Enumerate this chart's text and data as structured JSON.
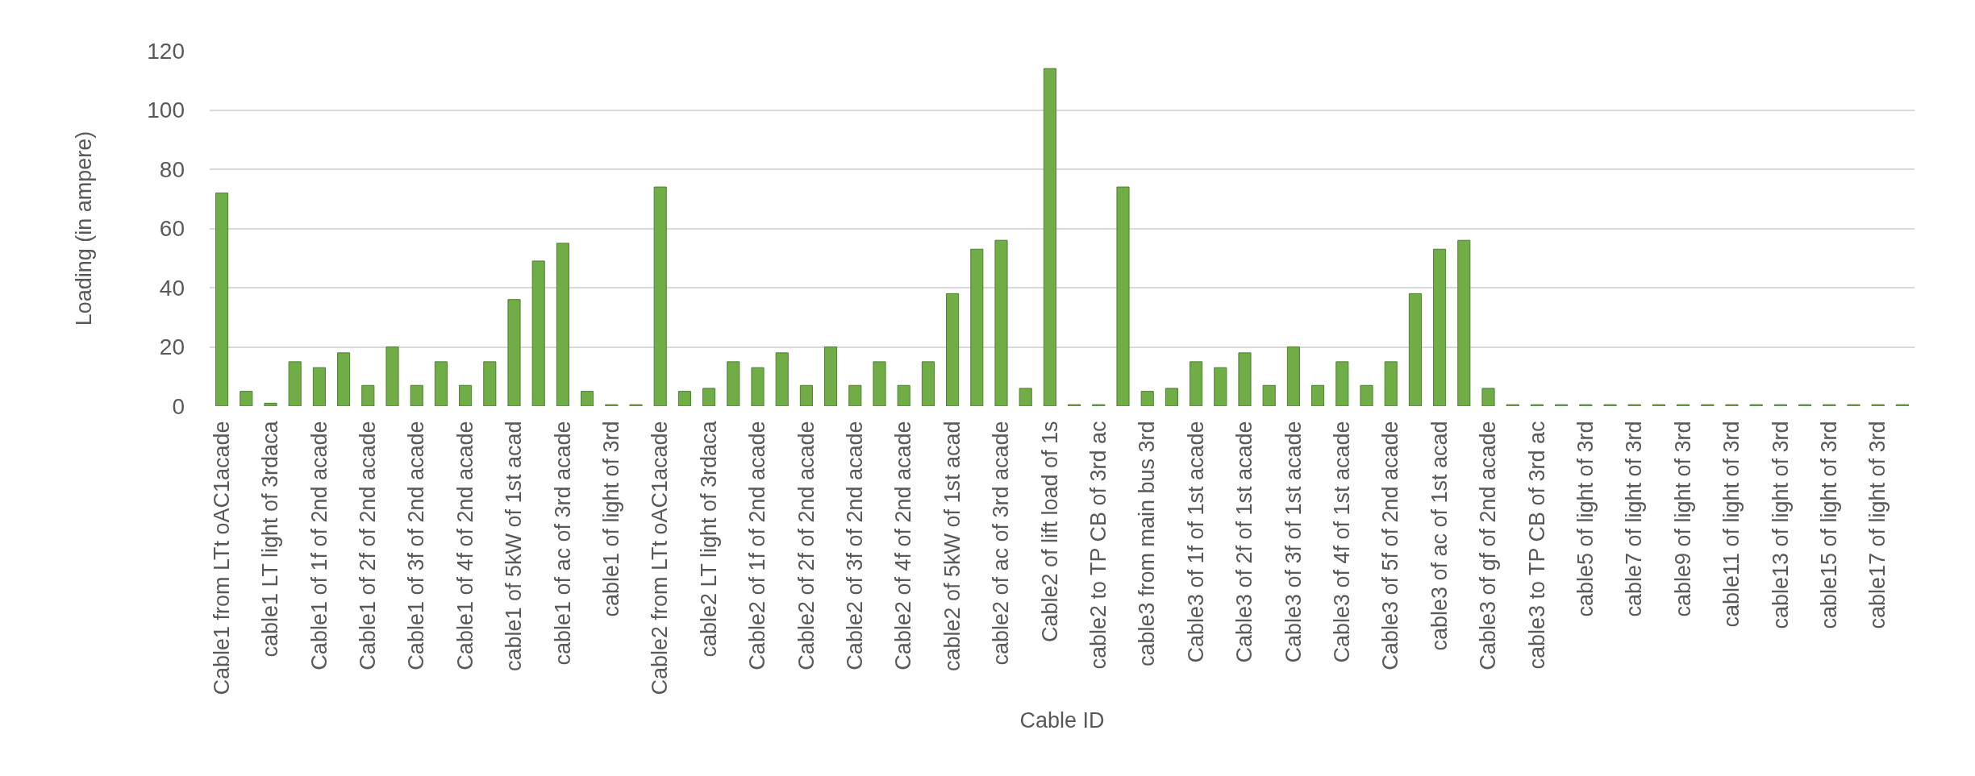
{
  "chart_data": {
    "type": "bar",
    "xlabel": "Cable ID",
    "ylabel": "Loading (in ampere)",
    "categories": [
      "Cable1 from LTt oAC1acade",
      null,
      "cable1 LT light of 3rdaca",
      null,
      "Cable1 of 1f of 2nd acade",
      null,
      "Cable1 of 2f of 2nd acade",
      null,
      "Cable1 of 3f of 2nd acade",
      null,
      "Cable1 of 4f of 2nd acade",
      null,
      "cable1 of 5kW of 1st acad",
      null,
      "cable1 of ac of 3rd acade",
      null,
      "cable1 of light of 3rd",
      null,
      "Cable2 from LTt oAC1acade",
      null,
      "cable2 LT light of 3rdaca",
      null,
      "Cable2 of 1f of 2nd acade",
      null,
      "Cable2 of 2f of 2nd acade",
      null,
      "Cable2 of 3f of 2nd acade",
      null,
      "Cable2 of 4f of 2nd acade",
      null,
      "cable2 of 5kW of 1st acad",
      null,
      "cable2 of ac of 3rd acade",
      null,
      "Cable2 of lift load of 1s",
      null,
      "cable2 to TP CB of 3rd ac",
      null,
      "cable3 from main bus 3rd",
      null,
      "Cable3 of 1f of 1st acade",
      null,
      "Cable3 of 2f of 1st acade",
      null,
      "Cable3 of 3f of 1st acade",
      null,
      "Cable3 of 4f of 1st acade",
      null,
      "Cable3 of 5f of 2nd acade",
      null,
      "cable3 of ac of 1st acad",
      null,
      "Cable3 of gf of 2nd acade",
      null,
      "cable3 to TP CB of 3rd ac",
      null,
      "cable5 of light of 3rd",
      null,
      "cable7 of light of 3rd",
      null,
      "cable9 of light of 3rd",
      null,
      "cable11 of light of 3rd",
      null,
      "cable13 of light of 3rd",
      null,
      "cable15 of light of 3rd",
      null,
      "cable17 of light of 3rd",
      null
    ],
    "values": [
      72,
      5,
      1,
      15,
      13,
      18,
      7,
      20,
      7,
      15,
      7,
      15,
      36,
      49,
      55,
      5,
      0.5,
      0.5,
      74,
      5,
      6,
      15,
      13,
      18,
      7,
      20,
      7,
      15,
      7,
      15,
      38,
      53,
      56,
      6,
      114,
      0.5,
      0.5,
      74,
      5,
      6,
      15,
      13,
      18,
      7,
      20,
      7,
      15,
      7,
      15,
      38,
      53,
      56,
      6,
      0.5,
      0.5,
      0.5,
      0.5,
      0.5,
      0.5,
      0.5,
      0.5,
      0.5,
      0.5,
      0.5,
      0.5,
      0.5,
      0.5,
      0.5,
      0.5,
      0.5
    ],
    "color": "#70ad47",
    "ylim": [
      0,
      120
    ],
    "yticks": [
      0,
      20,
      40,
      60,
      80,
      100,
      120
    ],
    "grid": "y"
  }
}
